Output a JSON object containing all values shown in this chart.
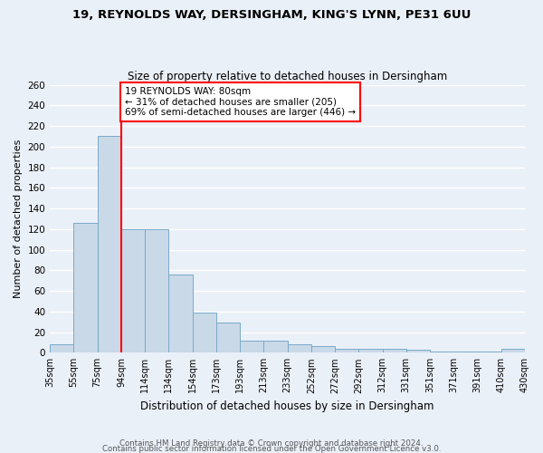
{
  "title1": "19, REYNOLDS WAY, DERSINGHAM, KING'S LYNN, PE31 6UU",
  "title2": "Size of property relative to detached houses in Dersingham",
  "xlabel": "Distribution of detached houses by size in Dersingham",
  "ylabel": "Number of detached properties",
  "bar_values": [
    8,
    126,
    210,
    120,
    120,
    76,
    39,
    29,
    12,
    12,
    8,
    6,
    4,
    4,
    4,
    3,
    1,
    1,
    1,
    4
  ],
  "categories": [
    "35sqm",
    "55sqm",
    "75sqm",
    "94sqm",
    "114sqm",
    "134sqm",
    "154sqm",
    "173sqm",
    "193sqm",
    "213sqm",
    "233sqm",
    "252sqm",
    "272sqm",
    "292sqm",
    "312sqm",
    "331sqm",
    "351sqm",
    "371sqm",
    "391sqm",
    "410sqm",
    "430sqm"
  ],
  "bar_color": "#c9d9e8",
  "bar_edge_color": "#7aaac8",
  "red_line_x": 2.5,
  "annotation_text": "19 REYNOLDS WAY: 80sqm\n← 31% of detached houses are smaller (205)\n69% of semi-detached houses are larger (446) →",
  "annotation_box_color": "white",
  "annotation_box_edge_color": "red",
  "ylim": [
    0,
    260
  ],
  "yticks": [
    0,
    20,
    40,
    60,
    80,
    100,
    120,
    140,
    160,
    180,
    200,
    220,
    240,
    260
  ],
  "footer1": "Contains HM Land Registry data © Crown copyright and database right 2024.",
  "footer2": "Contains public sector information licensed under the Open Government Licence v3.0.",
  "bg_color": "#eaf0f8",
  "grid_color": "white"
}
